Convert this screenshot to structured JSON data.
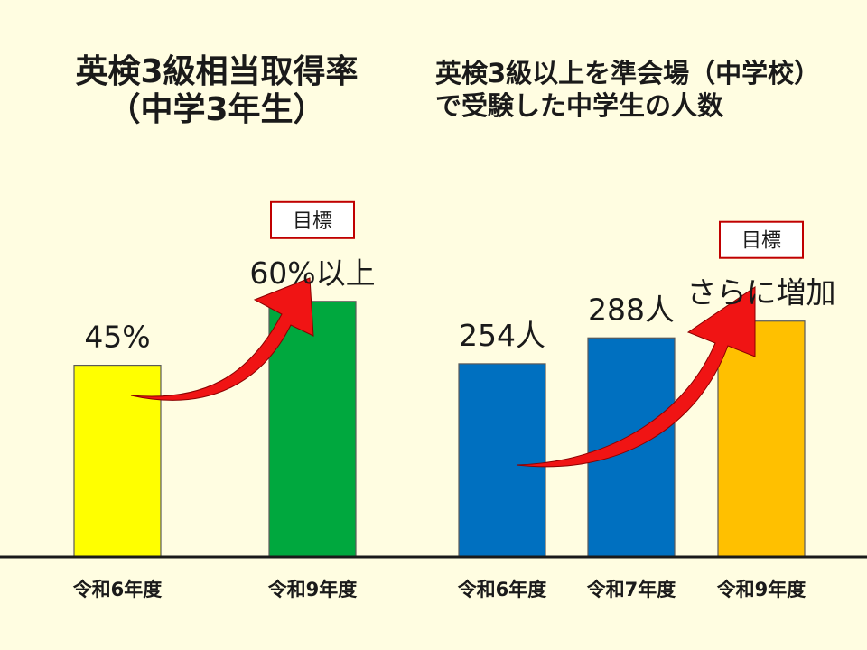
{
  "chart_data": [
    {
      "type": "bar",
      "title_line1": "英検3級相当取得率",
      "title_line2": "（中学3年生）",
      "categories": [
        "令和6年度",
        "令和9年度"
      ],
      "values": [
        45,
        60
      ],
      "value_labels": [
        "45%",
        "60%以上"
      ],
      "colors": [
        "#FFFF00",
        "#00A83E"
      ],
      "target_label": "目標",
      "target_index": 1,
      "ylim": [
        0,
        100
      ]
    },
    {
      "type": "bar",
      "title_line1": "英検3級以上を準会場（中学校）",
      "title_line2": "で受験した中学生の人数",
      "categories": [
        "令和6年度",
        "令和7年度",
        "令和9年度"
      ],
      "values": [
        254,
        288,
        310
      ],
      "value_labels": [
        "254人",
        "288人",
        "さらに増加"
      ],
      "colors": [
        "#0070C0",
        "#0070C0",
        "#FFC000"
      ],
      "target_label": "目標",
      "target_index": 2,
      "ylim": [
        0,
        560
      ]
    }
  ],
  "colors": {
    "background": "#FFFDE1",
    "arrow": "#F01414",
    "target_border": "#C00000"
  }
}
